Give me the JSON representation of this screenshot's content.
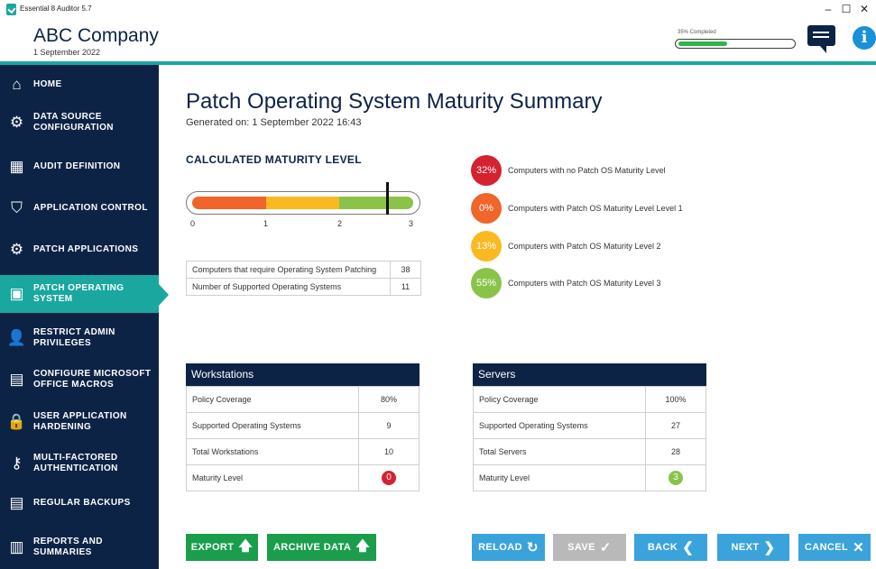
{
  "window": {
    "title": "Essential 8 Auditor 5.7",
    "minimize": "–",
    "maximize": "☐",
    "close": "✕"
  },
  "header": {
    "company": "ABC Company",
    "date": "1 September 2022",
    "progress_label": "35% Completed",
    "progress_value": 0.35,
    "chat_icon": "chat-icon",
    "info_icon": "i"
  },
  "sidebar": {
    "items": [
      {
        "label": "HOME",
        "icon": "home-icon",
        "glyph": "⌂",
        "active": false
      },
      {
        "label": "DATA SOURCE\nCONFIGURATION",
        "icon": "gears-icon",
        "glyph": "⚙",
        "active": false
      },
      {
        "label": "AUDIT DEFINITION",
        "icon": "grid-icon",
        "glyph": "▦",
        "active": false
      },
      {
        "label": "APPLICATION CONTROL",
        "icon": "shield-icon",
        "glyph": "⛉",
        "active": false
      },
      {
        "label": "PATCH APPLICATIONS",
        "icon": "gear-icon",
        "glyph": "⚙",
        "active": false
      },
      {
        "label": "PATCH OPERATING\nSYSTEM",
        "icon": "monitor-check-icon",
        "glyph": "▣",
        "active": true
      },
      {
        "label": "RESTRICT ADMIN\nPRIVILEGES",
        "icon": "users-icon",
        "glyph": "👤",
        "active": false
      },
      {
        "label": "CONFIGURE MICROSOFT\nOFFICE MACROS",
        "icon": "document-x-icon",
        "glyph": "▤",
        "active": false
      },
      {
        "label": "USER APPLICATION\nHARDENING",
        "icon": "lock-icon",
        "glyph": "🔒",
        "active": false
      },
      {
        "label": "MULTI-FACTORED\nAUTHENTICATION",
        "icon": "key-icon",
        "glyph": "⚷",
        "active": false
      },
      {
        "label": "REGULAR BACKUPS",
        "icon": "server-icon",
        "glyph": "▤",
        "active": false
      },
      {
        "label": "REPORTS AND\nSUMMARIES",
        "icon": "report-icon",
        "glyph": "▥",
        "active": false
      }
    ]
  },
  "main": {
    "title": "Patch Operating System Maturity Summary",
    "generated": "Generated on: 1 September 2022  16:43",
    "maturity_title": "CALCULATED MATURITY LEVEL",
    "gauge": {
      "ticks": [
        "0",
        "1",
        "2",
        "3"
      ],
      "value": 2.65,
      "max": 3,
      "colors": [
        "#f0652a",
        "#fbb921",
        "#8bc34a"
      ]
    },
    "summary_rows": [
      {
        "label": "Computers that require Operating System Patching",
        "value": "38"
      },
      {
        "label": "Number of Supported Operating Systems",
        "value": "11"
      }
    ],
    "legend": [
      {
        "pct": "32%",
        "text": "Computers with no Patch OS Maturity Level",
        "color": "#d42230"
      },
      {
        "pct": "0%",
        "text": "Computers with Patch OS Maturity Level Level 1",
        "color": "#f0652a"
      },
      {
        "pct": "13%",
        "text": "Computers with Patch OS Maturity Level 2",
        "color": "#fbb921"
      },
      {
        "pct": "55%",
        "text": "Computers with Patch OS Maturity Level 3",
        "color": "#8bc34a"
      }
    ],
    "workstations": {
      "title": "Workstations",
      "rows": [
        {
          "label": "Policy Coverage",
          "value": "80%"
        },
        {
          "label": "Supported Operating Systems",
          "value": "9"
        },
        {
          "label": "Total Workstations",
          "value": "10"
        },
        {
          "label": "Maturity Level",
          "value": "0",
          "badge_color": "#d42230"
        }
      ]
    },
    "servers": {
      "title": "Servers",
      "rows": [
        {
          "label": "Policy Coverage",
          "value": "100%"
        },
        {
          "label": "Supported Operating Systems",
          "value": "27"
        },
        {
          "label": "Total Servers",
          "value": "28"
        },
        {
          "label": "Maturity Level",
          "value": "3",
          "badge_color": "#8bc34a"
        }
      ]
    }
  },
  "buttons": {
    "export": {
      "label": "EXPORT",
      "icon": "arrow-up-icon",
      "glyph": "🡅",
      "color": "#1b9e4b"
    },
    "archive": {
      "label": "ARCHIVE DATA",
      "icon": "arrow-up-icon",
      "glyph": "🡅",
      "color": "#1b9e4b"
    },
    "reload": {
      "label": "RELOAD",
      "icon": "reload-icon",
      "glyph": "↻",
      "color": "#3aa3dc"
    },
    "save": {
      "label": "SAVE",
      "icon": "check-icon",
      "glyph": "✓",
      "color": "#b9b9b9"
    },
    "back": {
      "label": "BACK",
      "icon": "chevron-left-icon",
      "glyph": "❮",
      "color": "#3aa3dc"
    },
    "next": {
      "label": "NEXT",
      "icon": "chevron-right-icon",
      "glyph": "❯",
      "color": "#3aa3dc"
    },
    "cancel": {
      "label": "CANCEL",
      "icon": "close-icon",
      "glyph": "✕",
      "color": "#3aa3dc"
    }
  }
}
